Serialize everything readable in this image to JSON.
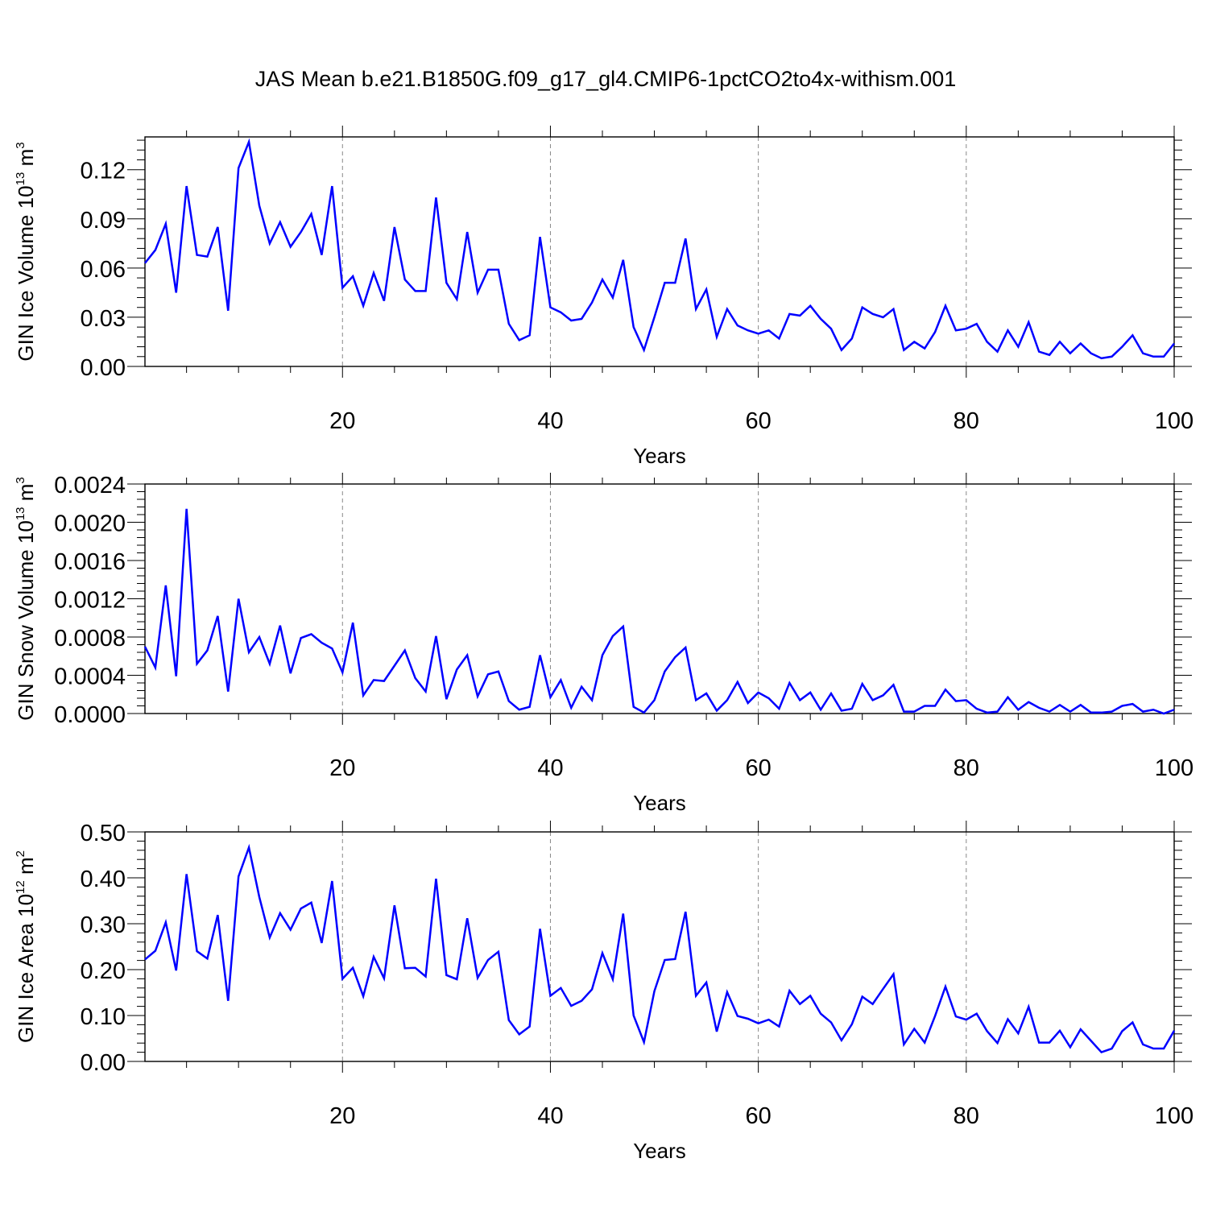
{
  "figure": {
    "title": "JAS Mean b.e21.B1850G.f09_g17_gl4.CMIP6-1pctCO2to4x-withism.001"
  },
  "chart_data": [
    {
      "type": "line",
      "title": "",
      "xlabel": "Years",
      "ylabel_base": "GIN Ice Volume 10",
      "ylabel_exp": "13",
      "ylabel_unit": " m",
      "ylabel_unit_exp": "3",
      "xlim": [
        1,
        100
      ],
      "ylim": [
        0,
        0.14
      ],
      "xticks": [
        20,
        40,
        60,
        80,
        100
      ],
      "xtick_labels": [
        "20",
        "40",
        "60",
        "80",
        "100"
      ],
      "yticks": [
        0,
        0.03,
        0.06,
        0.09,
        0.12
      ],
      "ytick_labels": [
        "0.00",
        "0.03",
        "0.06",
        "0.09",
        "0.12"
      ],
      "grid": "vertical dashed at major x ticks",
      "series": [
        {
          "color": "#0000ff",
          "x": [
            1,
            2,
            3,
            4,
            5,
            6,
            7,
            8,
            9,
            10,
            11,
            12,
            13,
            14,
            15,
            16,
            17,
            18,
            19,
            20,
            21,
            22,
            23,
            24,
            25,
            26,
            27,
            28,
            29,
            30,
            31,
            32,
            33,
            34,
            35,
            36,
            37,
            38,
            39,
            40,
            41,
            42,
            43,
            44,
            45,
            46,
            47,
            48,
            49,
            50,
            51,
            52,
            53,
            54,
            55,
            56,
            57,
            58,
            59,
            60,
            61,
            62,
            63,
            64,
            65,
            66,
            67,
            68,
            69,
            70,
            71,
            72,
            73,
            74,
            75,
            76,
            77,
            78,
            79,
            80,
            81,
            82,
            83,
            84,
            85,
            86,
            87,
            88,
            89,
            90,
            91,
            92,
            93,
            94,
            95,
            96,
            97,
            98,
            99,
            100
          ],
          "values": [
            0.063,
            0.071,
            0.087,
            0.045,
            0.11,
            0.068,
            0.067,
            0.085,
            0.034,
            0.121,
            0.137,
            0.098,
            0.075,
            0.088,
            0.073,
            0.082,
            0.093,
            0.068,
            0.11,
            0.048,
            0.055,
            0.037,
            0.057,
            0.04,
            0.085,
            0.053,
            0.046,
            0.046,
            0.103,
            0.051,
            0.041,
            0.082,
            0.045,
            0.059,
            0.059,
            0.026,
            0.016,
            0.019,
            0.079,
            0.036,
            0.033,
            0.028,
            0.029,
            0.039,
            0.053,
            0.042,
            0.065,
            0.024,
            0.01,
            0.03,
            0.051,
            0.051,
            0.078,
            0.035,
            0.047,
            0.018,
            0.035,
            0.025,
            0.022,
            0.02,
            0.022,
            0.017,
            0.032,
            0.031,
            0.037,
            0.029,
            0.023,
            0.01,
            0.017,
            0.036,
            0.032,
            0.03,
            0.035,
            0.01,
            0.015,
            0.011,
            0.021,
            0.037,
            0.022,
            0.023,
            0.026,
            0.015,
            0.009,
            0.022,
            0.012,
            0.027,
            0.009,
            0.007,
            0.015,
            0.008,
            0.014,
            0.008,
            0.005,
            0.006,
            0.012,
            0.019,
            0.008,
            0.006,
            0.006,
            0.014
          ]
        }
      ]
    },
    {
      "type": "line",
      "title": "",
      "xlabel": "Years",
      "ylabel_base": "GIN Snow Volume 10",
      "ylabel_exp": "13",
      "ylabel_unit": " m",
      "ylabel_unit_exp": "3",
      "xlim": [
        1,
        100
      ],
      "ylim": [
        0,
        0.0024
      ],
      "xticks": [
        20,
        40,
        60,
        80,
        100
      ],
      "xtick_labels": [
        "20",
        "40",
        "60",
        "80",
        "100"
      ],
      "yticks": [
        0,
        0.0004,
        0.0008,
        0.0012,
        0.0016,
        0.002,
        0.0024
      ],
      "ytick_labels": [
        "0.0000",
        "0.0004",
        "0.0008",
        "0.0012",
        "0.0016",
        "0.0020",
        "0.0024"
      ],
      "grid": "vertical dashed at major x ticks",
      "series": [
        {
          "color": "#0000ff",
          "x": [
            1,
            2,
            3,
            4,
            5,
            6,
            7,
            8,
            9,
            10,
            11,
            12,
            13,
            14,
            15,
            16,
            17,
            18,
            19,
            20,
            21,
            22,
            23,
            24,
            25,
            26,
            27,
            28,
            29,
            30,
            31,
            32,
            33,
            34,
            35,
            36,
            37,
            38,
            39,
            40,
            41,
            42,
            43,
            44,
            45,
            46,
            47,
            48,
            49,
            50,
            51,
            52,
            53,
            54,
            55,
            56,
            57,
            58,
            59,
            60,
            61,
            62,
            63,
            64,
            65,
            66,
            67,
            68,
            69,
            70,
            71,
            72,
            73,
            74,
            75,
            76,
            77,
            78,
            79,
            80,
            81,
            82,
            83,
            84,
            85,
            86,
            87,
            88,
            89,
            90,
            91,
            92,
            93,
            94,
            95,
            96,
            97,
            98,
            99,
            100
          ],
          "values": [
            0.0007,
            0.00048,
            0.00134,
            0.00039,
            0.00214,
            0.00052,
            0.00066,
            0.00102,
            0.00023,
            0.0012,
            0.00064,
            0.0008,
            0.00052,
            0.00092,
            0.00042,
            0.00079,
            0.00083,
            0.00074,
            0.00068,
            0.00043,
            0.00095,
            0.00019,
            0.00035,
            0.00034,
            0.0005,
            0.00066,
            0.00037,
            0.00023,
            0.00081,
            0.00015,
            0.00046,
            0.00061,
            0.00018,
            0.00041,
            0.00044,
            0.00013,
            4e-05,
            7e-05,
            0.00061,
            0.00017,
            0.00035,
            6e-05,
            0.00028,
            0.00014,
            0.00061,
            0.00081,
            0.00091,
            7e-05,
            1e-05,
            0.00014,
            0.00044,
            0.00059,
            0.00069,
            0.00014,
            0.00021,
            3e-05,
            0.00014,
            0.00033,
            0.00011,
            0.00022,
            0.00016,
            5e-05,
            0.00032,
            0.00014,
            0.00022,
            4e-05,
            0.00021,
            3e-05,
            5e-05,
            0.00031,
            0.00014,
            0.00019,
            0.0003,
            2e-05,
            2e-05,
            8e-05,
            8e-05,
            0.00025,
            0.00013,
            0.00014,
            5e-05,
            1e-05,
            2e-05,
            0.00017,
            4e-05,
            0.00012,
            6e-05,
            2e-05,
            9e-05,
            2e-05,
            9e-05,
            1e-05,
            1e-05,
            2e-05,
            8e-05,
            0.0001,
            2e-05,
            4e-05,
            0.0,
            4e-05
          ]
        }
      ]
    },
    {
      "type": "line",
      "title": "",
      "xlabel": "Years",
      "ylabel_base": "GIN Ice Area 10",
      "ylabel_exp": "12",
      "ylabel_unit": " m",
      "ylabel_unit_exp": "2",
      "xlim": [
        1,
        100
      ],
      "ylim": [
        0,
        0.5
      ],
      "xticks": [
        20,
        40,
        60,
        80,
        100
      ],
      "xtick_labels": [
        "20",
        "40",
        "60",
        "80",
        "100"
      ],
      "yticks": [
        0,
        0.1,
        0.2,
        0.3,
        0.4,
        0.5
      ],
      "ytick_labels": [
        "0.00",
        "0.10",
        "0.20",
        "0.30",
        "0.40",
        "0.50"
      ],
      "grid": "vertical dashed at major x ticks",
      "series": [
        {
          "color": "#0000ff",
          "x": [
            1,
            2,
            3,
            4,
            5,
            6,
            7,
            8,
            9,
            10,
            11,
            12,
            13,
            14,
            15,
            16,
            17,
            18,
            19,
            20,
            21,
            22,
            23,
            24,
            25,
            26,
            27,
            28,
            29,
            30,
            31,
            32,
            33,
            34,
            35,
            36,
            37,
            38,
            39,
            40,
            41,
            42,
            43,
            44,
            45,
            46,
            47,
            48,
            49,
            50,
            51,
            52,
            53,
            54,
            55,
            56,
            57,
            58,
            59,
            60,
            61,
            62,
            63,
            64,
            65,
            66,
            67,
            68,
            69,
            70,
            71,
            72,
            73,
            74,
            75,
            76,
            77,
            78,
            79,
            80,
            81,
            82,
            83,
            84,
            85,
            86,
            87,
            88,
            89,
            90,
            91,
            92,
            93,
            94,
            95,
            96,
            97,
            98,
            99,
            100
          ],
          "values": [
            0.222,
            0.241,
            0.303,
            0.198,
            0.408,
            0.24,
            0.224,
            0.319,
            0.132,
            0.403,
            0.466,
            0.358,
            0.27,
            0.323,
            0.287,
            0.333,
            0.346,
            0.258,
            0.393,
            0.18,
            0.204,
            0.142,
            0.228,
            0.181,
            0.34,
            0.203,
            0.204,
            0.185,
            0.398,
            0.188,
            0.179,
            0.312,
            0.182,
            0.221,
            0.239,
            0.09,
            0.059,
            0.076,
            0.289,
            0.143,
            0.16,
            0.121,
            0.132,
            0.157,
            0.236,
            0.179,
            0.322,
            0.1,
            0.042,
            0.153,
            0.221,
            0.223,
            0.326,
            0.143,
            0.172,
            0.065,
            0.151,
            0.099,
            0.093,
            0.083,
            0.091,
            0.076,
            0.154,
            0.125,
            0.143,
            0.104,
            0.085,
            0.046,
            0.081,
            0.141,
            0.125,
            0.158,
            0.19,
            0.037,
            0.071,
            0.041,
            0.099,
            0.163,
            0.098,
            0.091,
            0.104,
            0.066,
            0.04,
            0.092,
            0.061,
            0.119,
            0.041,
            0.041,
            0.067,
            0.031,
            0.07,
            0.045,
            0.02,
            0.028,
            0.066,
            0.085,
            0.037,
            0.028,
            0.028,
            0.067
          ]
        }
      ]
    }
  ]
}
